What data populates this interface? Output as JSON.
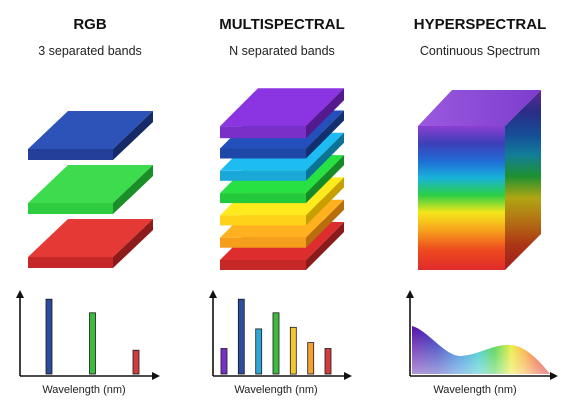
{
  "panels": [
    {
      "title": "RGB",
      "subtitle": "3 separated bands",
      "xlabel": "Wavelength (nm)"
    },
    {
      "title": "MULTISPECTRAL",
      "subtitle": "N separated bands",
      "xlabel": "Wavelength (nm)"
    },
    {
      "title": "HYPERSPECTRAL",
      "subtitle": "Continuous Spectrum",
      "xlabel": "Wavelength (nm)"
    }
  ],
  "rgb_bands": [
    {
      "color": "#c62828",
      "top": "#e53935",
      "side": "#8e1b1b"
    },
    {
      "color": "#2ecc40",
      "top": "#3ddc4f",
      "side": "#1b8f27"
    },
    {
      "color": "#243f9a",
      "top": "#2d52b8",
      "side": "#152a66"
    }
  ],
  "multi_bands": [
    {
      "color": "#c62828",
      "side": "#8e1b1b"
    },
    {
      "color": "#f59e1c",
      "side": "#b86e0c"
    },
    {
      "color": "#ffd21a",
      "side": "#c7a000"
    },
    {
      "color": "#22c93a",
      "side": "#168a27"
    },
    {
      "color": "#1aa8d8",
      "side": "#0d7396"
    },
    {
      "color": "#1f47a8",
      "side": "#12306f"
    },
    {
      "color": "#7b2fc9",
      "side": "#53198d"
    }
  ],
  "rgb_spectrum": [
    {
      "color": "#2b4d9b",
      "value": 0.88
    },
    {
      "color": "#3dbb3d",
      "value": 0.72
    },
    {
      "color": "#d23b3b",
      "value": 0.28
    }
  ],
  "multi_spectrum": [
    {
      "color": "#7b2fc9",
      "value": 0.3
    },
    {
      "color": "#2b4d9b",
      "value": 0.88
    },
    {
      "color": "#2fa6d6",
      "value": 0.53
    },
    {
      "color": "#3dbb3d",
      "value": 0.72
    },
    {
      "color": "#f2c832",
      "value": 0.55
    },
    {
      "color": "#f5a035",
      "value": 0.37
    },
    {
      "color": "#d23b3b",
      "value": 0.3
    }
  ]
}
